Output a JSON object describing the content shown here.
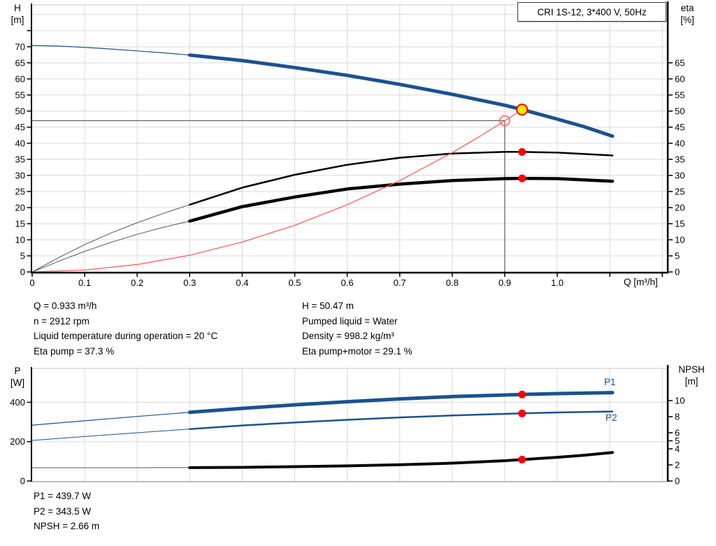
{
  "colors": {
    "curve_blue": "#1A5291",
    "curve_black": "#000000",
    "system_red": "#FF5555",
    "marker_red": "#FF0000",
    "duty_yellow": "#FFE800",
    "grid": "#D9D9D9",
    "border": "#C8C8C8",
    "crosshair": "#444444",
    "label_blue": "#1A5291"
  },
  "axis_headers": {
    "top_left": [
      "H",
      "[m]"
    ],
    "top_right": [
      "eta",
      "[%]"
    ],
    "bottom_left": [
      "P",
      "[W]"
    ],
    "bottom_right": [
      "NPSH",
      "[m]"
    ]
  },
  "info": {
    "left": [
      "Q = 0.933 m³/h",
      "n = 2912 rpm",
      "Liquid temperature during operation = 20 °C",
      "Eta pump = 37.3 %"
    ],
    "right": [
      "H = 50.47 m",
      "Pumped liquid = Water",
      "Density = 998.2 kg/m³",
      "Eta pump+motor = 29.1 %"
    ],
    "bottom": [
      "P1 = 439.7 W",
      "P2 = 343.5 W",
      "NPSH = 2.66 m"
    ]
  },
  "chart_data": [
    {
      "type": "line",
      "title": "CRI 1S-12, 3*400 V, 50Hz",
      "x_axis": {
        "label": "Q [m³/h]",
        "range": [
          0,
          1.21
        ],
        "grid_values": [
          0.1,
          0.2,
          0.3,
          0.4,
          0.5,
          0.6,
          0.7,
          0.8,
          0.9,
          1.0,
          1.1,
          1.2
        ],
        "tick_values": [
          0,
          0.1,
          0.2,
          0.3,
          0.4,
          0.5,
          0.6,
          0.7,
          0.8,
          0.9,
          1.0,
          1.1,
          1.2
        ],
        "tick_labels": [
          "0",
          "0.1",
          "0.2",
          "0.3",
          "0.4",
          "0.5",
          "0.6",
          "0.7",
          "0.8",
          "0.9",
          "1.0",
          "",
          ""
        ]
      },
      "left_axis": {
        "name": "H [m]",
        "max": 83,
        "grid_values": [
          5,
          10,
          15,
          20,
          25,
          30,
          35,
          40,
          45,
          50,
          55,
          60,
          65,
          70,
          75,
          80
        ],
        "tick_values": [
          0,
          5,
          10,
          15,
          20,
          25,
          30,
          35,
          40,
          45,
          50,
          55,
          60,
          65,
          70,
          75
        ],
        "tick_labels": [
          "0",
          "5",
          "10",
          "15",
          "20",
          "25",
          "30",
          "35",
          "40",
          "45",
          "50",
          "55",
          "60",
          "65",
          "70",
          ""
        ]
      },
      "right_axis": {
        "name": "eta [%]",
        "max": 83,
        "tick_values": [
          0,
          5,
          10,
          15,
          20,
          25,
          30,
          35,
          40,
          45,
          50,
          55,
          60,
          65
        ],
        "tick_labels": [
          "0",
          "5",
          "10",
          "15",
          "20",
          "25",
          "30",
          "35",
          "40",
          "45",
          "50",
          "55",
          "60",
          "65"
        ]
      },
      "crosshair": {
        "q": 0.9,
        "h": 47
      },
      "series": [
        {
          "name": "pump-qh-curve",
          "label": "H",
          "axis": "left",
          "color": "#1A5291",
          "width": 5,
          "split": 0.3,
          "thin_width": 1.2,
          "points": [
            [
              0,
              70.4
            ],
            [
              0.05,
              70.2
            ],
            [
              0.1,
              69.8
            ],
            [
              0.15,
              69.3
            ],
            [
              0.2,
              68.7
            ],
            [
              0.25,
              68.1
            ],
            [
              0.3,
              67.4
            ],
            [
              0.4,
              65.7
            ],
            [
              0.5,
              63.5
            ],
            [
              0.6,
              61.1
            ],
            [
              0.7,
              58.3
            ],
            [
              0.8,
              55.2
            ],
            [
              0.9,
              51.8
            ],
            [
              0.933,
              50.47
            ],
            [
              1.0,
              47.5
            ],
            [
              1.05,
              45.2
            ],
            [
              1.105,
              42.2
            ]
          ]
        },
        {
          "name": "eta-pump",
          "label": "Eta pump",
          "axis": "right",
          "color": "#000000",
          "width": 2.5,
          "split": 0.3,
          "thin_width": 1,
          "thin_color": "#555555",
          "points": [
            [
              0,
              0
            ],
            [
              0.05,
              4.4
            ],
            [
              0.1,
              8.5
            ],
            [
              0.15,
              12.1
            ],
            [
              0.2,
              15.3
            ],
            [
              0.25,
              18.2
            ],
            [
              0.3,
              20.9
            ],
            [
              0.4,
              26.2
            ],
            [
              0.5,
              30.2
            ],
            [
              0.6,
              33.3
            ],
            [
              0.7,
              35.5
            ],
            [
              0.8,
              36.8
            ],
            [
              0.9,
              37.3
            ],
            [
              0.933,
              37.3
            ],
            [
              1.0,
              37.1
            ],
            [
              1.105,
              36.2
            ]
          ]
        },
        {
          "name": "eta-pump-motor",
          "label": "Eta pump+motor",
          "axis": "right",
          "color": "#000000",
          "width": 4.5,
          "split": 0.3,
          "thin_width": 1,
          "thin_color": "#555555",
          "points": [
            [
              0,
              0
            ],
            [
              0.05,
              3.3
            ],
            [
              0.1,
              6.4
            ],
            [
              0.15,
              9.2
            ],
            [
              0.2,
              11.7
            ],
            [
              0.25,
              13.9
            ],
            [
              0.3,
              15.8
            ],
            [
              0.4,
              20.3
            ],
            [
              0.5,
              23.3
            ],
            [
              0.6,
              25.8
            ],
            [
              0.7,
              27.3
            ],
            [
              0.8,
              28.4
            ],
            [
              0.9,
              29.0
            ],
            [
              0.933,
              29.1
            ],
            [
              1.0,
              29.0
            ],
            [
              1.105,
              28.2
            ]
          ]
        },
        {
          "name": "system-curve",
          "label": "System curve",
          "axis": "left",
          "color": "#FF5555",
          "width": 1.2,
          "split": null,
          "points": [
            [
              0,
              0
            ],
            [
              0.1,
              0.6
            ],
            [
              0.2,
              2.3
            ],
            [
              0.3,
              5.2
            ],
            [
              0.4,
              9.3
            ],
            [
              0.5,
              14.5
            ],
            [
              0.6,
              20.9
            ],
            [
              0.7,
              28.4
            ],
            [
              0.8,
              37.1
            ],
            [
              0.85,
              41.9
            ],
            [
              0.9,
              47.0
            ],
            [
              0.933,
              50.47
            ]
          ]
        }
      ],
      "markers": [
        {
          "q": 0.9,
          "v": 47.0,
          "axis": "left",
          "style": "open-circle"
        },
        {
          "q": 0.933,
          "v": 37.3,
          "axis": "right",
          "style": "dot"
        },
        {
          "q": 0.933,
          "v": 29.1,
          "axis": "right",
          "style": "dot"
        },
        {
          "q": 0.933,
          "v": 50.47,
          "axis": "left",
          "style": "duty-point"
        }
      ]
    },
    {
      "type": "line",
      "title": "",
      "x_axis": {
        "label": "",
        "range": [
          0,
          1.21
        ],
        "grid_values": [
          0.1,
          0.2,
          0.3,
          0.4,
          0.5,
          0.6,
          0.7,
          0.8,
          0.9,
          1.0,
          1.1,
          1.2
        ],
        "tick_values": [],
        "tick_labels": []
      },
      "left_axis": {
        "name": "P [W]",
        "max": 572,
        "grid_values": [
          200,
          400
        ],
        "tick_values": [
          0,
          200,
          400
        ],
        "tick_labels": [
          "0",
          "200",
          "400"
        ]
      },
      "right_axis": {
        "name": "NPSH [m]",
        "max": 14,
        "tick_values": [
          0,
          2,
          4,
          5,
          6,
          8,
          10
        ],
        "tick_labels": [
          "0",
          "2",
          "4",
          "5",
          "6",
          "8",
          "10"
        ]
      },
      "series": [
        {
          "name": "p1-power",
          "label": "P1",
          "axis": "left",
          "color": "#1A5291",
          "width": 5,
          "split": 0.3,
          "thin_width": 1.2,
          "points": [
            [
              0,
              284
            ],
            [
              0.1,
              306
            ],
            [
              0.2,
              328
            ],
            [
              0.3,
              349
            ],
            [
              0.4,
              369
            ],
            [
              0.5,
              387
            ],
            [
              0.6,
              403
            ],
            [
              0.7,
              417
            ],
            [
              0.8,
              429
            ],
            [
              0.9,
              437
            ],
            [
              0.933,
              439.7
            ],
            [
              1.0,
              444
            ],
            [
              1.105,
              449
            ]
          ]
        },
        {
          "name": "p2-power",
          "label": "P2",
          "axis": "left",
          "color": "#1A5291",
          "width": 2.5,
          "split": 0.3,
          "thin_width": 1,
          "points": [
            [
              0,
              206
            ],
            [
              0.1,
              226
            ],
            [
              0.2,
              245
            ],
            [
              0.3,
              264
            ],
            [
              0.4,
              282
            ],
            [
              0.5,
              297
            ],
            [
              0.6,
              311
            ],
            [
              0.7,
              323
            ],
            [
              0.8,
              333
            ],
            [
              0.9,
              341
            ],
            [
              0.933,
              343.5
            ],
            [
              1.0,
              348
            ],
            [
              1.105,
              353
            ]
          ]
        },
        {
          "name": "npsh-curve",
          "label": "NPSH",
          "axis": "right",
          "color": "#000000",
          "width": 4,
          "split": 0.3,
          "thin_width": 1,
          "thin_color": "#555555",
          "points": [
            [
              0,
              1.65
            ],
            [
              0.1,
              1.65
            ],
            [
              0.2,
              1.65
            ],
            [
              0.3,
              1.66
            ],
            [
              0.4,
              1.7
            ],
            [
              0.5,
              1.78
            ],
            [
              0.6,
              1.88
            ],
            [
              0.7,
              2.02
            ],
            [
              0.8,
              2.22
            ],
            [
              0.9,
              2.52
            ],
            [
              0.933,
              2.66
            ],
            [
              1.0,
              2.95
            ],
            [
              1.05,
              3.2
            ],
            [
              1.105,
              3.55
            ]
          ]
        }
      ],
      "markers": [
        {
          "q": 0.933,
          "v": 439.7,
          "axis": "left",
          "style": "dot"
        },
        {
          "q": 0.933,
          "v": 343.5,
          "axis": "left",
          "style": "dot"
        },
        {
          "q": 0.933,
          "v": 2.66,
          "axis": "right",
          "style": "dot"
        }
      ]
    }
  ]
}
